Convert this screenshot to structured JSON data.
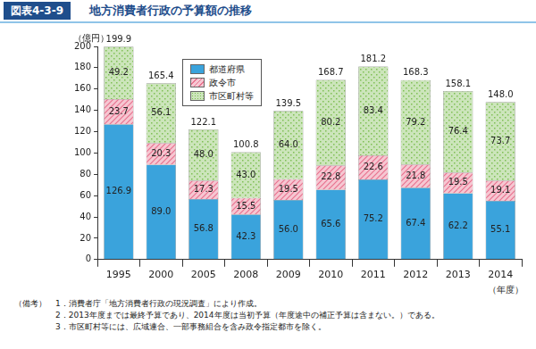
{
  "chart_data": {
    "type": "bar",
    "figure_label": "図表4-3-9",
    "title": "地方消費者行政の予算額の推移",
    "y_label": "（億円）",
    "x_label": "（年度）",
    "categories": [
      "1995",
      "2000",
      "2005",
      "2008",
      "2009",
      "2010",
      "2011",
      "2012",
      "2013",
      "2014"
    ],
    "series": [
      {
        "name": "都道府県",
        "color": "#3aa3dc",
        "values": [
          126.9,
          89.0,
          56.8,
          42.3,
          56.0,
          65.6,
          75.2,
          67.4,
          62.2,
          55.1
        ],
        "value_labels": [
          "126.9",
          "89.0",
          "56.8",
          "42.3",
          "56.0",
          "65.6",
          "75.2",
          "67.4",
          "62.2",
          "55.1"
        ]
      },
      {
        "name": "政令市",
        "color": "#e8738f",
        "values": [
          23.7,
          20.3,
          17.3,
          15.5,
          19.5,
          22.8,
          22.6,
          21.8,
          19.5,
          19.1
        ],
        "value_labels": [
          "23.7",
          "20.3",
          "17.3",
          "15.5",
          "19.5",
          "22.8",
          "22.6",
          "21.8",
          "19.5",
          "19.1"
        ]
      },
      {
        "name": "市区町村等",
        "color": "#7fbf55",
        "values": [
          49.2,
          56.1,
          48.0,
          43.0,
          64.0,
          80.2,
          83.4,
          79.2,
          76.4,
          73.7
        ],
        "value_labels": [
          "49.2",
          "56.1",
          "48.0",
          "43.0",
          "64.0",
          "80.2",
          "83.4",
          "79.2",
          "76.4",
          "73.7"
        ]
      }
    ],
    "totals": [
      199.9,
      165.4,
      122.1,
      100.8,
      139.5,
      168.7,
      181.2,
      168.3,
      158.1,
      148.0
    ],
    "total_labels": [
      "199.9",
      "165.4",
      "122.1",
      "100.8",
      "139.5",
      "168.7",
      "181.2",
      "168.3",
      "158.1",
      "148.0"
    ],
    "ylim": [
      0,
      200
    ],
    "yticks": [
      0,
      20,
      40,
      60,
      80,
      100,
      120,
      140,
      160,
      180,
      200
    ],
    "stacked": true,
    "data_labels": true,
    "grid": false,
    "legend": "upper left",
    "notes_label": "（備考）",
    "notes": [
      "1．消費者庁「地方消費者行政の現況調査」により作成。",
      "2．2013年度までは最終予算であり、2014年度は当初予算（年度途中の補正予算は含まない。）である。",
      "3．市区町村等には、広域連合、一部事務組合を含み政令指定都市を除く。"
    ]
  }
}
